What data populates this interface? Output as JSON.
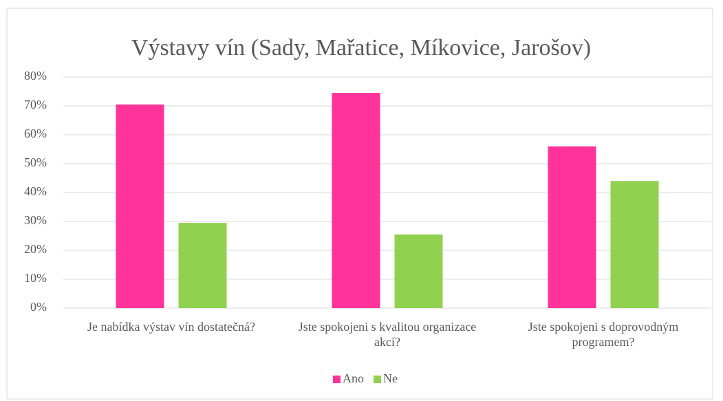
{
  "chart_data": {
    "type": "bar",
    "title": "Výstavy vín (Sady, Mařatice, Míkovice, Jarošov)",
    "categories": [
      "Je nabídka výstav vín dostatečná?",
      "Jste spokojeni s kvalitou organizace akcí?",
      "Jste spokojeni s doprovodným programem?"
    ],
    "series": [
      {
        "name": "Ano",
        "color": "#ff3399",
        "values": [
          70.5,
          74.5,
          56
        ]
      },
      {
        "name": "Ne",
        "color": "#92d050",
        "values": [
          29.5,
          25.5,
          44
        ]
      }
    ],
    "ylim": [
      0,
      80
    ],
    "yticks": [
      {
        "value": 0,
        "label": "0%"
      },
      {
        "value": 10,
        "label": "10%"
      },
      {
        "value": 20,
        "label": "20%"
      },
      {
        "value": 30,
        "label": "30%"
      },
      {
        "value": 40,
        "label": "40%"
      },
      {
        "value": 50,
        "label": "50%"
      },
      {
        "value": 60,
        "label": "60%"
      },
      {
        "value": 70,
        "label": "70%"
      },
      {
        "value": 80,
        "label": "80%"
      }
    ],
    "grid": true,
    "legend": "bottom"
  }
}
